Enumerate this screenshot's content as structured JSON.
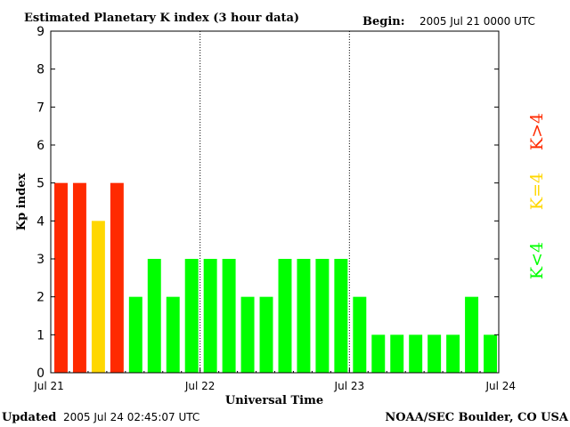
{
  "chart_data": {
    "type": "bar",
    "title": "Estimated Planetary K index (3 hour data)",
    "begin_label": "Begin:",
    "begin_value": "2005 Jul 21 0000 UTC",
    "xlabel": "Universal Time",
    "ylabel": "Kp index",
    "ylim": [
      0,
      9
    ],
    "yticks": [
      "0",
      "1",
      "2",
      "3",
      "4",
      "5",
      "6",
      "7",
      "8",
      "9"
    ],
    "xticks": [
      "Jul 21",
      "Jul 22",
      "Jul 23",
      "Jul 24"
    ],
    "values": [
      5,
      5,
      4,
      5,
      2,
      3,
      2,
      3,
      3,
      3,
      2,
      2,
      3,
      3,
      3,
      3,
      2,
      1,
      1,
      1,
      1,
      1,
      2,
      1
    ],
    "colors": {
      "below_4": "#00ff00",
      "equal_4": "#ffd700",
      "above_4": "#ff2a00"
    },
    "legend": {
      "below_4": "K<4",
      "equal_4": "K=4",
      "above_4": "K>4"
    },
    "grid": "dotted vertical lines at day boundaries"
  },
  "footer": {
    "updated_label": "Updated",
    "updated_value": "2005 Jul 24 02:45:07 UTC",
    "source": "NOAA/SEC Boulder, CO USA"
  }
}
